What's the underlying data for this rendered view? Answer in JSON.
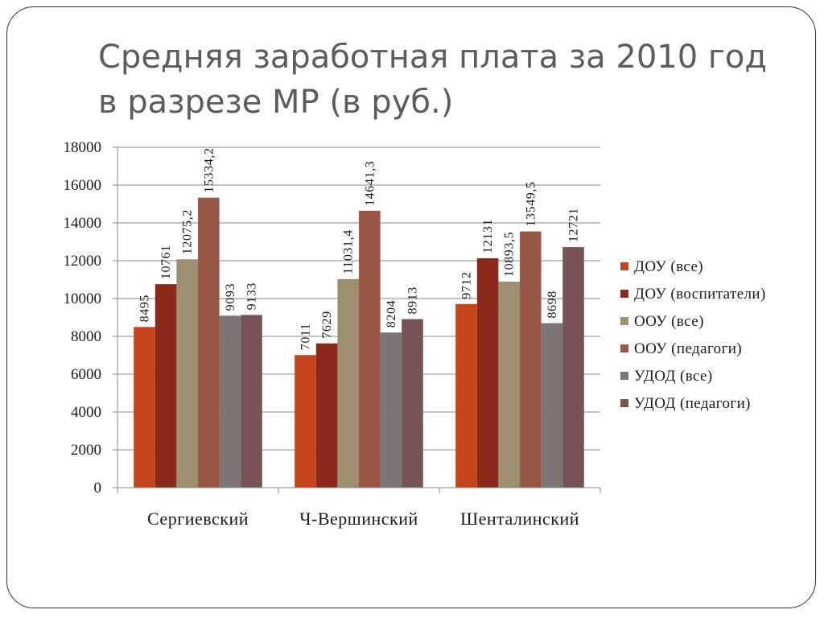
{
  "slide": {
    "title": "Средняя заработная плата  за 2010 год\nв разрезе МР (в руб.)"
  },
  "chart_data": {
    "type": "bar",
    "title": "",
    "xlabel": "",
    "ylabel": "",
    "ylim": [
      0,
      18000
    ],
    "yticks": [
      0,
      2000,
      4000,
      6000,
      8000,
      10000,
      12000,
      14000,
      16000,
      18000
    ],
    "grid": true,
    "legend_position": "right",
    "categories": [
      "Сергиевский",
      "Ч-Вершинский",
      "Шенталинский"
    ],
    "series": [
      {
        "name": "ДОУ (все)",
        "color": "#c5441c",
        "values": [
          8495,
          7011,
          9712
        ],
        "labels": [
          "8495",
          "7011",
          "9712"
        ]
      },
      {
        "name": "ДОУ (воспитатели)",
        "color": "#8b2a1b",
        "values": [
          10761,
          7629,
          12131
        ],
        "labels": [
          "10761",
          "7629",
          "12131"
        ]
      },
      {
        "name": "ООУ (все)",
        "color": "#9c9070",
        "values": [
          12075.2,
          11031.4,
          10893.5
        ],
        "labels": [
          "12075,2",
          "11031,4",
          "10893,5"
        ]
      },
      {
        "name": "ООУ (педагоги)",
        "color": "#9a5745",
        "values": [
          15334.2,
          14641.3,
          13549.5
        ],
        "labels": [
          "15334,2",
          "14641,3",
          "13549,5"
        ]
      },
      {
        "name": "УДОД (все)",
        "color": "#7d7475",
        "values": [
          9093,
          8204,
          8698
        ],
        "labels": [
          "9093",
          "8204",
          "8698"
        ]
      },
      {
        "name": "УДОД (педагоги)",
        "color": "#775355",
        "values": [
          9133,
          8913,
          12721
        ],
        "labels": [
          "9133",
          "8913",
          "12721"
        ]
      }
    ]
  }
}
